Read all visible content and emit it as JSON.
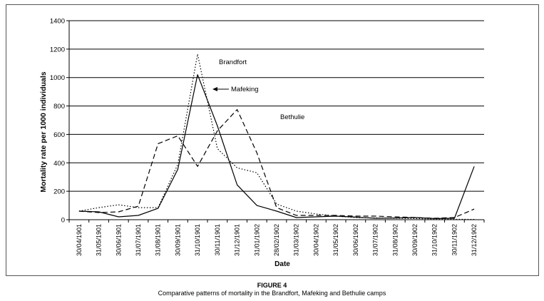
{
  "figure": {
    "number": "FIGURE 4",
    "caption": "Comparative patterns of mortality in the Brandfort, Mafeking and Bethulie camps"
  },
  "chart_data": {
    "type": "line",
    "xlabel": "Date",
    "ylabel": "Mortality rate per 1000 individuals",
    "ylim": [
      0,
      1400
    ],
    "yticks": [
      0,
      200,
      400,
      600,
      800,
      1000,
      1200,
      1400
    ],
    "grid": "horizontal",
    "categories": [
      "30/04/1901",
      "31/05/1901",
      "30/06/1901",
      "31/07/1901",
      "31/08/1901",
      "30/09/1901",
      "31/10/1901",
      "30/11/1901",
      "31/12/1901",
      "31/01/1902",
      "28/02/1902",
      "31/03/1902",
      "30/04/1902",
      "31/05/1902",
      "30/06/1902",
      "31/07/1902",
      "31/08/1902",
      "30/09/1902",
      "31/10/1902",
      "30/11/1902",
      "31/12/1902"
    ],
    "series": [
      {
        "name": "Brandfort",
        "style": "dotted",
        "color": "#000000",
        "values": [
          60,
          85,
          105,
          85,
          85,
          390,
          1165,
          500,
          365,
          330,
          110,
          60,
          40,
          25,
          15,
          12,
          10,
          8,
          5,
          3,
          2
        ]
      },
      {
        "name": "Mafeking",
        "style": "solid",
        "color": "#000000",
        "values": [
          60,
          55,
          20,
          30,
          80,
          355,
          1020,
          660,
          245,
          100,
          60,
          15,
          20,
          25,
          18,
          10,
          12,
          15,
          8,
          10,
          375
        ]
      },
      {
        "name": "Bethulie",
        "style": "dashed",
        "color": "#000000",
        "values": [
          60,
          50,
          55,
          95,
          535,
          590,
          375,
          625,
          775,
          470,
          85,
          30,
          30,
          30,
          25,
          25,
          20,
          15,
          10,
          15,
          75
        ]
      }
    ],
    "annotations": [
      {
        "text": "Brandfort"
      },
      {
        "text": "Mafeking"
      },
      {
        "text": "Bethulie"
      }
    ]
  }
}
